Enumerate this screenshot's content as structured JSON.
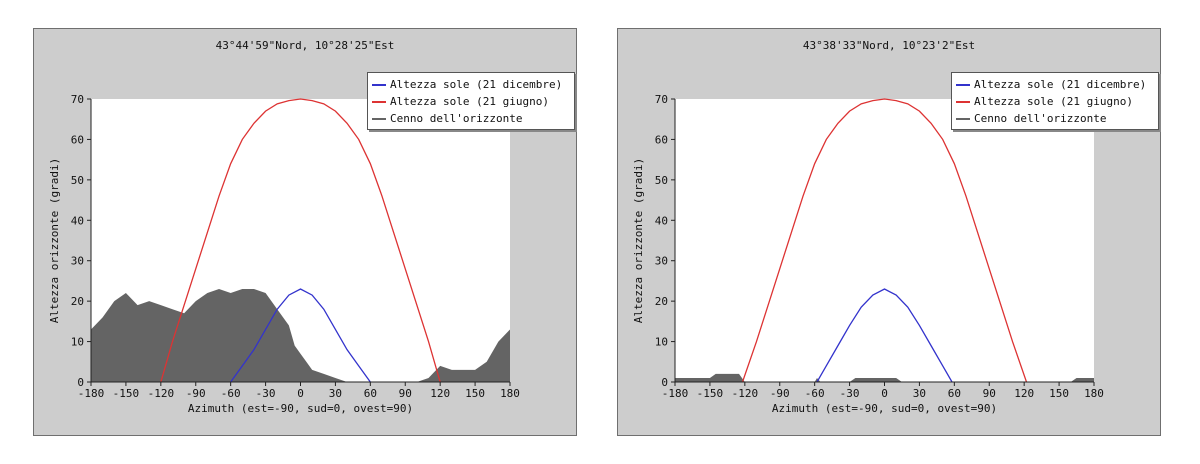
{
  "chart_data": [
    {
      "type": "line",
      "title": "43°44'59\"Nord, 10°28'25\"Est",
      "xlabel": "Azimuth (est=-90, sud=0, ovest=90)",
      "ylabel": "Altezza orizzonte (gradi)",
      "xlim": [
        -180,
        180
      ],
      "ylim": [
        0,
        70
      ],
      "xticks": [
        "-180",
        "-150",
        "-120",
        "-90",
        "-60",
        "-30",
        "0",
        "30",
        "60",
        "90",
        "120",
        "150",
        "180"
      ],
      "yticks": [
        "0",
        "10",
        "20",
        "30",
        "40",
        "50",
        "60",
        "70"
      ],
      "legend_position": "top-right",
      "series": [
        {
          "name": "Altezza sole (21 dicembre)",
          "color": "#3333cc",
          "kind": "line",
          "x": [
            -60,
            -50,
            -40,
            -30,
            -20,
            -10,
            0,
            10,
            20,
            30,
            40,
            50,
            60
          ],
          "y": [
            0,
            4,
            8,
            13,
            18,
            21.5,
            23,
            21.5,
            18,
            13,
            8,
            4,
            0
          ]
        },
        {
          "name": "Altezza sole (21 giugno)",
          "color": "#dd3333",
          "kind": "line",
          "x": [
            -120,
            -110,
            -100,
            -90,
            -80,
            -70,
            -60,
            -50,
            -40,
            -30,
            -20,
            -10,
            0,
            10,
            20,
            30,
            40,
            50,
            60,
            70,
            80,
            90,
            100,
            110,
            120
          ],
          "y": [
            0,
            10,
            19,
            28,
            37,
            46,
            54,
            60,
            64,
            67,
            68.8,
            69.6,
            70,
            69.6,
            68.8,
            67,
            64,
            60,
            54,
            46,
            37,
            28,
            19,
            10,
            0
          ]
        },
        {
          "name": "Cenno dell'orizzonte",
          "color": "#646464",
          "kind": "area",
          "x": [
            -180,
            -170,
            -160,
            -150,
            -140,
            -130,
            -120,
            -110,
            -100,
            -90,
            -80,
            -70,
            -60,
            -50,
            -40,
            -30,
            -20,
            -10,
            -5,
            0,
            5,
            10,
            20,
            30,
            40,
            100,
            110,
            120,
            130,
            140,
            150,
            160,
            170,
            180
          ],
          "y": [
            13,
            16,
            20,
            22,
            19,
            20,
            19,
            18,
            17,
            20,
            22,
            23,
            22,
            23,
            23,
            22,
            18,
            14,
            9,
            7,
            5,
            3,
            2,
            1,
            0,
            0,
            1,
            4,
            3,
            3,
            3,
            5,
            10,
            13
          ]
        }
      ]
    },
    {
      "type": "line",
      "title": "43°38'33\"Nord, 10°23'2\"Est",
      "xlabel": "Azimuth (est=-90, sud=0, ovest=90)",
      "ylabel": "Altezza orizzonte (gradi)",
      "xlim": [
        -180,
        180
      ],
      "ylim": [
        0,
        70
      ],
      "xticks": [
        "-180",
        "-150",
        "-120",
        "-90",
        "-60",
        "-30",
        "0",
        "30",
        "60",
        "90",
        "120",
        "150",
        "180"
      ],
      "yticks": [
        "0",
        "10",
        "20",
        "30",
        "40",
        "50",
        "60",
        "70"
      ],
      "legend_position": "top-right",
      "series": [
        {
          "name": "Altezza sole (21 dicembre)",
          "color": "#3333cc",
          "kind": "line",
          "x": [
            -58,
            -50,
            -40,
            -30,
            -20,
            -10,
            0,
            10,
            20,
            30,
            40,
            50,
            58
          ],
          "y": [
            0,
            4,
            9,
            14,
            18.5,
            21.5,
            23,
            21.5,
            18.5,
            14,
            9,
            4,
            0
          ]
        },
        {
          "name": "Altezza sole (21 giugno)",
          "color": "#dd3333",
          "kind": "line",
          "x": [
            -122,
            -110,
            -100,
            -90,
            -80,
            -70,
            -60,
            -50,
            -40,
            -30,
            -20,
            -10,
            0,
            10,
            20,
            30,
            40,
            50,
            60,
            70,
            80,
            90,
            100,
            110,
            122
          ],
          "y": [
            0,
            10,
            19,
            28,
            37,
            46,
            54,
            60,
            64,
            67,
            68.8,
            69.6,
            70,
            69.6,
            68.8,
            67,
            64,
            60,
            54,
            46,
            37,
            28,
            19,
            10,
            0
          ]
        },
        {
          "name": "Cenno dell'orizzonte",
          "color": "#646464",
          "kind": "area",
          "x": [
            -180,
            -150,
            -145,
            -125,
            -120,
            -60,
            -58,
            -55,
            -50,
            -30,
            -25,
            -10,
            10,
            15,
            20,
            160,
            165,
            180
          ],
          "y": [
            1,
            1,
            2,
            2,
            0,
            0,
            1,
            0,
            0,
            0,
            1,
            1,
            1,
            0,
            0,
            0,
            1,
            1
          ]
        }
      ]
    }
  ]
}
